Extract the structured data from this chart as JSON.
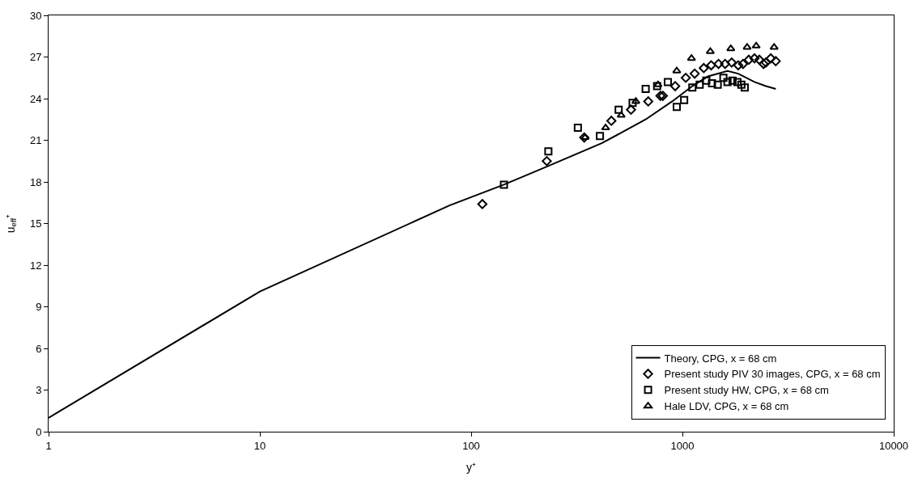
{
  "chart_data": {
    "type": "scatter",
    "xlabel": "y⁺",
    "ylabel": "u$_{eff}$⁺",
    "log": "x",
    "xlim": [
      1,
      10000
    ],
    "xticks": [
      1,
      10,
      100,
      1000,
      10000
    ],
    "ylim": [
      0,
      30
    ],
    "yticks": [
      0,
      3,
      6,
      9,
      12,
      15,
      18,
      21,
      24,
      27,
      30
    ],
    "legend": "bottom right",
    "series": [
      {
        "name": "Theory, CPG, x = 68 cm",
        "type": "line",
        "color": "#000000",
        "marker": "none",
        "x": [
          1,
          10,
          79,
          143,
          228,
          417,
          670,
          894,
          1114,
          1320,
          1634,
          1837,
          2193,
          2483,
          2766
        ],
        "values": [
          1.0,
          10.1,
          16.3,
          17.8,
          19.1,
          20.8,
          22.5,
          23.8,
          24.9,
          25.6,
          26.0,
          25.8,
          25.2,
          24.9,
          24.7
        ]
      },
      {
        "name": "Present study PIV 30 images, CPG, x = 68 cm",
        "color": "#000000",
        "marker": "diamond",
        "x": [
          113,
          228,
          343,
          461,
          571,
          689,
          787,
          808,
          924,
          1037,
          1143,
          1262,
          1368,
          1482,
          1592,
          1710,
          1837,
          1936,
          2061,
          2193,
          2313,
          2420,
          2483,
          2618,
          2766
        ],
        "values": [
          16.4,
          19.5,
          21.2,
          22.4,
          23.2,
          23.8,
          24.2,
          24.2,
          24.9,
          25.5,
          25.8,
          26.2,
          26.4,
          26.5,
          26.5,
          26.6,
          26.4,
          26.5,
          26.8,
          26.9,
          26.8,
          26.5,
          26.6,
          26.9,
          26.7
        ]
      },
      {
        "name": "Present study HW, CPG, x = 68 cm",
        "color": "#000000",
        "marker": "square",
        "x": [
          143,
          232,
          320,
          407,
          499,
          581,
          670,
          759,
          853,
          940,
          1019,
          1114,
          1207,
          1297,
          1380,
          1469,
          1563,
          1634,
          1726,
          1820,
          1901,
          1972
        ],
        "values": [
          17.8,
          20.2,
          21.9,
          21.3,
          23.2,
          23.7,
          24.7,
          24.9,
          25.2,
          23.4,
          23.9,
          24.8,
          25.0,
          25.3,
          25.1,
          25.0,
          25.5,
          25.2,
          25.3,
          25.2,
          25.0,
          24.8
        ]
      },
      {
        "name": "Hale LDV, CPG, x = 68 cm",
        "color": "#000000",
        "marker": "triangle",
        "x": [
          346,
          433,
          513,
          602,
          766,
          940,
          1104,
          1355,
          1694,
          2024,
          2234,
          2716
        ],
        "values": [
          21.2,
          21.9,
          22.8,
          23.8,
          25.0,
          26.0,
          26.9,
          27.4,
          27.6,
          27.7,
          27.8,
          27.7
        ]
      }
    ]
  }
}
